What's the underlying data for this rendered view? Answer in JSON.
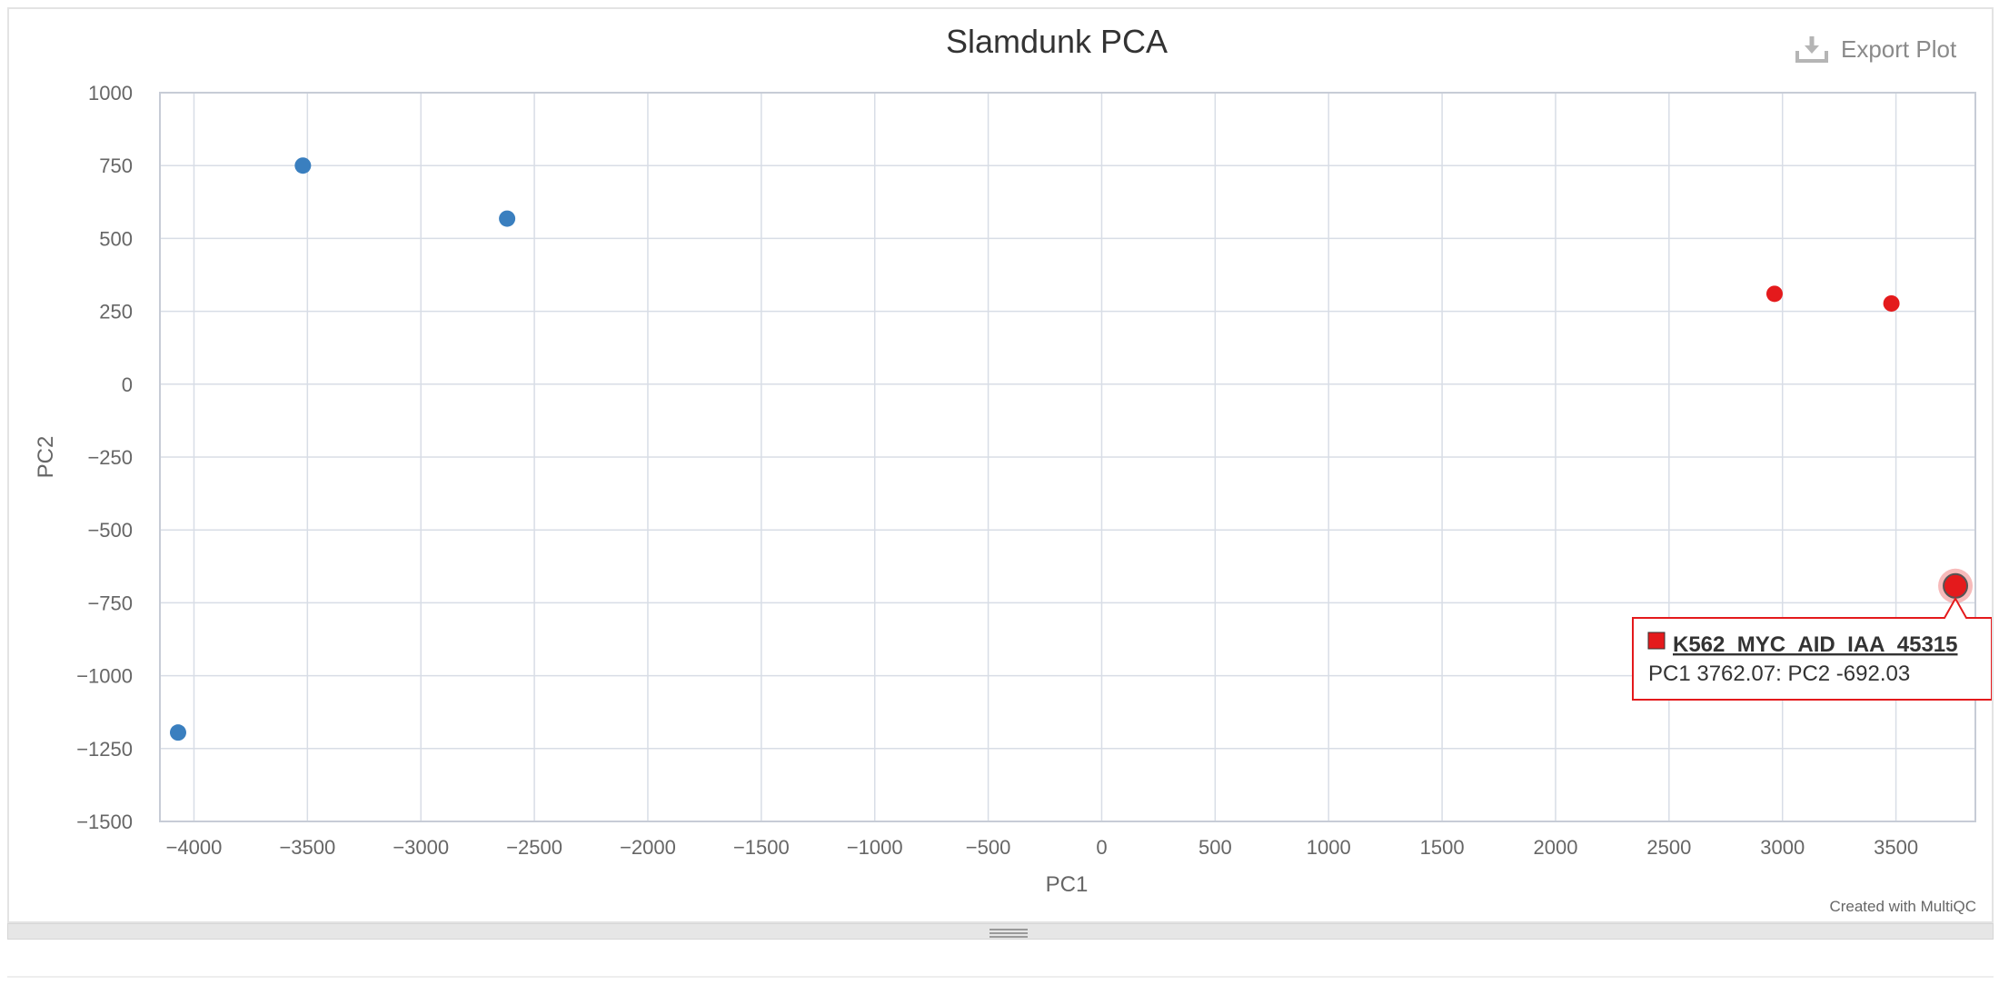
{
  "export": {
    "label": "Export Plot",
    "icon": "download-icon"
  },
  "credit": "Created with MultiQC",
  "chart_data": {
    "type": "scatter",
    "title": "Slamdunk PCA",
    "xlabel": "PC1",
    "ylabel": "PC2",
    "xlim": [
      -4150,
      3850
    ],
    "ylim": [
      -1500,
      1000
    ],
    "xticks": [
      -4000,
      -3500,
      -3000,
      -2500,
      -2000,
      -1500,
      -1000,
      -500,
      0,
      500,
      1000,
      1500,
      2000,
      2500,
      3000,
      3500
    ],
    "yticks": [
      1000,
      750,
      500,
      250,
      0,
      -250,
      -500,
      -750,
      -1000,
      -1250,
      -1500
    ],
    "grid": true,
    "colors": {
      "blue": "#3a7fbf",
      "red": "#e41a1c"
    },
    "points": [
      {
        "x": -3520,
        "y": 750,
        "color": "#3a7fbf"
      },
      {
        "x": -2620,
        "y": 568,
        "color": "#3a7fbf"
      },
      {
        "x": -4070,
        "y": -1195,
        "color": "#3a7fbf"
      },
      {
        "x": 2965,
        "y": 310,
        "color": "#e41a1c"
      },
      {
        "x": 3480,
        "y": 277,
        "color": "#e41a1c"
      },
      {
        "x": 3762.07,
        "y": -692.03,
        "color": "#e41a1c",
        "highlighted": true
      }
    ],
    "tooltip": {
      "name": "K562_MYC_AID_IAA_45315",
      "text": "PC1 3762.07: PC2 -692.03",
      "color": "#e41a1c"
    }
  }
}
